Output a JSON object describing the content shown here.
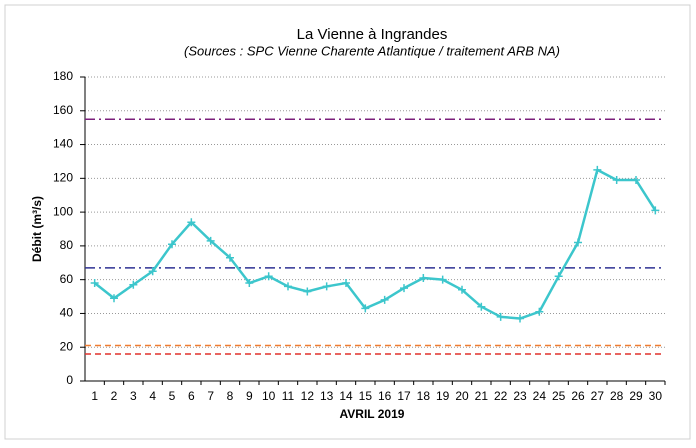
{
  "chart_data": {
    "type": "line",
    "title": "La Vienne à Ingrandes",
    "subtitle": "(Sources : SPC Vienne Charente Atlantique / traitement ARB NA)",
    "x_label": "AVRIL 2019",
    "y_label": "Débit (m³/s)",
    "categories": [
      "1",
      "2",
      "3",
      "4",
      "5",
      "6",
      "7",
      "8",
      "9",
      "10",
      "11",
      "12",
      "13",
      "14",
      "15",
      "16",
      "17",
      "18",
      "19",
      "20",
      "21",
      "22",
      "23",
      "24",
      "25",
      "26",
      "27",
      "28",
      "29",
      "30"
    ],
    "values": [
      58,
      49,
      57,
      65,
      81,
      94,
      83,
      73,
      58,
      62,
      56,
      53,
      56,
      58,
      43,
      48,
      55,
      61,
      60,
      54,
      44,
      38,
      37,
      41,
      62,
      82,
      125,
      119,
      119,
      101
    ],
    "color": "#3cc6cc",
    "reference_lines": [
      {
        "value": 155,
        "color": "#7b1f7b",
        "style": "dashdot"
      },
      {
        "value": 67,
        "color": "#2e3192",
        "style": "dashdot"
      },
      {
        "value": 21,
        "color": "#f07c30",
        "style": "dash"
      },
      {
        "value": 16,
        "color": "#e0302c",
        "style": "dash"
      }
    ],
    "ylim": [
      0,
      180
    ],
    "yticks": [
      0,
      20,
      40,
      60,
      80,
      100,
      120,
      140,
      160,
      180
    ],
    "grid": true
  }
}
